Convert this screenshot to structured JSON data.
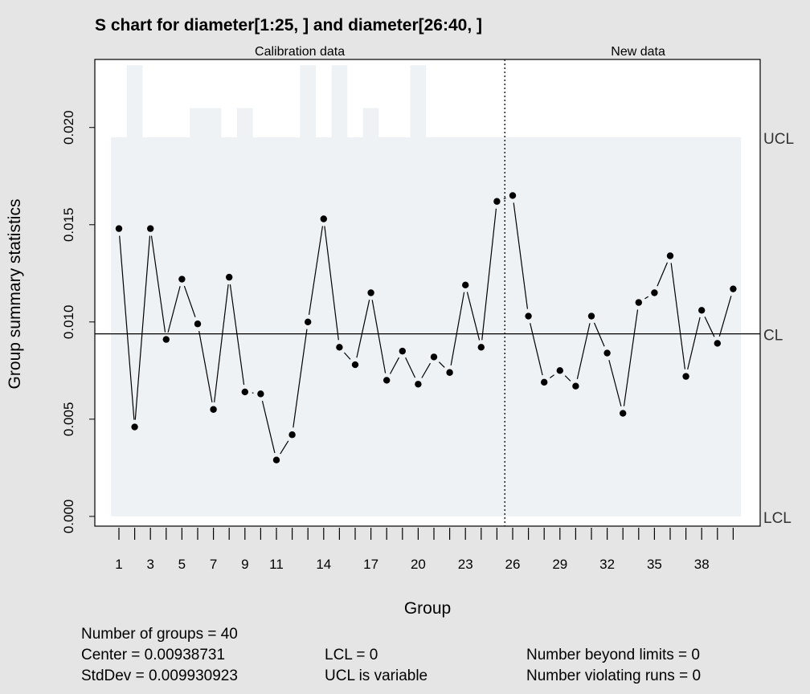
{
  "chart_data": {
    "type": "line",
    "title": "S chart for diameter[1:25, ] and diameter[26:40, ]",
    "xlabel": "Group",
    "ylabel": "Group summary statistics",
    "ylim": [
      -0.0005,
      0.0235
    ],
    "y_ticks": [
      "0.000",
      "0.005",
      "0.010",
      "0.015",
      "0.020"
    ],
    "x_tick_labels": [
      "1",
      "3",
      "5",
      "7",
      "9",
      "11",
      "14",
      "17",
      "20",
      "23",
      "26",
      "29",
      "32",
      "35",
      "38"
    ],
    "sections": [
      {
        "label": "Calibration data",
        "groups": [
          1,
          25
        ]
      },
      {
        "label": "New data",
        "groups": [
          26,
          40
        ]
      }
    ],
    "center": 0.00938731,
    "lcl": 0,
    "ucl_default": 0.0195,
    "ucl_values": [
      0.0195,
      0.0232,
      0.0195,
      0.0195,
      0.0195,
      0.021,
      0.021,
      0.0195,
      0.021,
      0.0195,
      0.0195,
      0.0195,
      0.0232,
      0.0195,
      0.0232,
      0.0195,
      0.021,
      0.0195,
      0.0195,
      0.0232,
      0.0195,
      0.0195,
      0.0195,
      0.0195,
      0.0195,
      0.0195,
      0.0195,
      0.0195,
      0.0195,
      0.0195,
      0.0195,
      0.0195,
      0.0195,
      0.0195,
      0.0195,
      0.0195,
      0.0195,
      0.0195,
      0.0195,
      0.0195
    ],
    "series": [
      {
        "values": [
          0.0148,
          0.0046,
          0.0148,
          0.0091,
          0.0122,
          0.0099,
          0.0055,
          0.0123,
          0.0064,
          0.0063,
          0.0029,
          0.0042,
          0.01,
          0.0153,
          0.0087,
          0.0078,
          0.0115,
          0.007,
          0.0085,
          0.0068,
          0.0082,
          0.0074,
          0.0119,
          0.0087,
          0.0162,
          0.0165,
          0.0103,
          0.0069,
          0.0075,
          0.0067,
          0.0103,
          0.0084,
          0.0053,
          0.011,
          0.0115,
          0.0134,
          0.0072,
          0.0106,
          0.0089,
          0.0117
        ]
      }
    ],
    "limit_labels": {
      "ucl": "UCL",
      "cl": "CL",
      "lcl": "LCL"
    },
    "grid": false,
    "colors": {
      "band": "#eef2f5",
      "background": "#e5e5e5",
      "plot": "#ffffff",
      "line": "#000000"
    }
  },
  "summary": {
    "n_groups": "Number of groups = 40",
    "center": "Center = 0.00938731",
    "stddev": "StdDev = 0.009930923",
    "lcl": "LCL = 0",
    "ucl": "UCL is variable",
    "beyond": "Number beyond limits = 0",
    "violating": "Number violating runs = 0"
  }
}
